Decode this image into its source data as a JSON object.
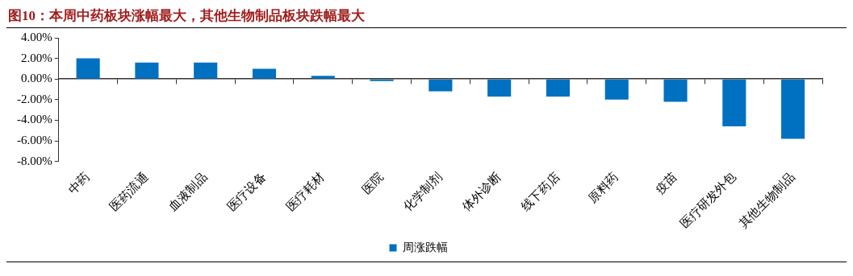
{
  "chart_data": {
    "type": "bar",
    "title": "图10：本周中药板块涨幅最大，其他生物制品板块跌幅最大",
    "categories": [
      "中药",
      "医药流通",
      "血液制品",
      "医疗设备",
      "医疗耗材",
      "医院",
      "化学制剂",
      "体外诊断",
      "线下药店",
      "原料药",
      "疫苗",
      "医疗研发外包",
      "其他生物制品"
    ],
    "series": [
      {
        "name": "周涨跌幅",
        "color": "#0070c0",
        "values": [
          2.0,
          1.6,
          1.6,
          1.0,
          0.3,
          -0.2,
          -1.2,
          -1.7,
          -1.7,
          -2.0,
          -2.2,
          -4.6,
          -5.8
        ]
      }
    ],
    "ylim": [
      -8,
      4
    ],
    "yticks": [
      {
        "value": 4,
        "label": "4.00%"
      },
      {
        "value": 2,
        "label": "2.00%"
      },
      {
        "value": 0,
        "label": "0.00%"
      },
      {
        "value": -2,
        "label": "-2.00%"
      },
      {
        "value": -4,
        "label": "-4.00%"
      },
      {
        "value": -6,
        "label": "-6.00%"
      },
      {
        "value": -8,
        "label": "-8.00%"
      }
    ],
    "legend": "bottom"
  }
}
